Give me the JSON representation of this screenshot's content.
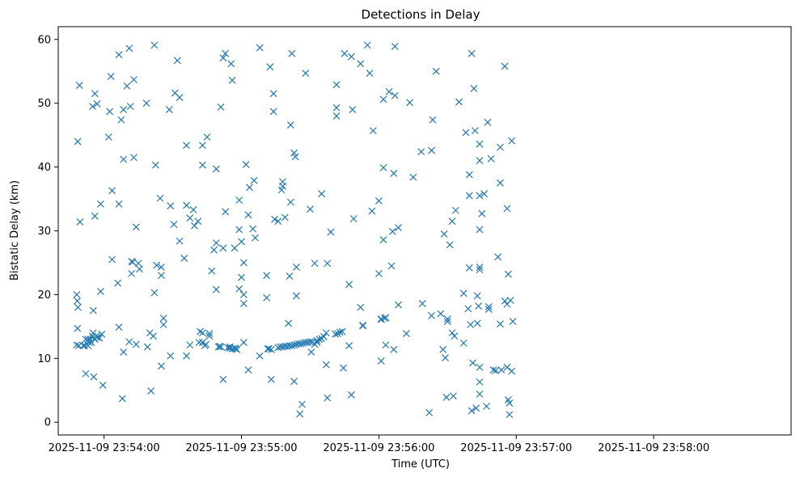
{
  "chart_data": {
    "type": "scatter",
    "title": "Detections in Delay",
    "xlabel": "Time (UTC)",
    "ylabel": "Bistatic Delay (km)",
    "x_unit": "seconds after 2025-11-09 23:53:00 UTC",
    "xlim": [
      40,
      360
    ],
    "ylim": [
      -2,
      62
    ],
    "x_ticks": [
      {
        "value": 60,
        "label": "2025-11-09 23:54:00"
      },
      {
        "value": 120,
        "label": "2025-11-09 23:55:00"
      },
      {
        "value": 180,
        "label": "2025-11-09 23:56:00"
      },
      {
        "value": 240,
        "label": "2025-11-09 23:57:00"
      },
      {
        "value": 300,
        "label": "2025-11-09 23:58:00"
      }
    ],
    "y_ticks": [
      0,
      10,
      20,
      30,
      40,
      50,
      60
    ],
    "grid": false,
    "marker": "x",
    "color": "#1f77b4",
    "points": [
      [
        48,
        12.1
      ],
      [
        48.1,
        20
      ],
      [
        48.3,
        19
      ],
      [
        48.4,
        14.7
      ],
      [
        48.5,
        44
      ],
      [
        48.6,
        18
      ],
      [
        49,
        12
      ],
      [
        49.3,
        52.8
      ],
      [
        49.5,
        31.4
      ],
      [
        51,
        12
      ],
      [
        51.5,
        12
      ],
      [
        52,
        7.6
      ],
      [
        52,
        13
      ],
      [
        53,
        12
      ],
      [
        53,
        13
      ],
      [
        53.5,
        12.5
      ],
      [
        54,
        13
      ],
      [
        54.5,
        12.5
      ],
      [
        55,
        49.5
      ],
      [
        55,
        13.5
      ],
      [
        55.2,
        14
      ],
      [
        55.3,
        17.5
      ],
      [
        55.5,
        7.1
      ],
      [
        56,
        13
      ],
      [
        56,
        51.5
      ],
      [
        56,
        32.3
      ],
      [
        56.5,
        13.5
      ],
      [
        57,
        13.3
      ],
      [
        57,
        49.9
      ],
      [
        58,
        13.2
      ],
      [
        58.5,
        34.2
      ],
      [
        58.5,
        20.5
      ],
      [
        59,
        13.8
      ],
      [
        59.5,
        5.8
      ],
      [
        62,
        44.7
      ],
      [
        62.5,
        48.7
      ],
      [
        63,
        54.2
      ],
      [
        63.5,
        36.3
      ],
      [
        63.5,
        25.5
      ],
      [
        66,
        21.8
      ],
      [
        66.5,
        14.9
      ],
      [
        66.5,
        57.6
      ],
      [
        66.5,
        34.2
      ],
      [
        67.5,
        47.4
      ],
      [
        68,
        3.7
      ],
      [
        68.5,
        49
      ],
      [
        68.5,
        41.2
      ],
      [
        68.5,
        11
      ],
      [
        70,
        52.7
      ],
      [
        71,
        58.6
      ],
      [
        71,
        12.6
      ],
      [
        71.5,
        49.5
      ],
      [
        72,
        25.2
      ],
      [
        72,
        23.3
      ],
      [
        72.5,
        25.1
      ],
      [
        73,
        53.7
      ],
      [
        73,
        41.5
      ],
      [
        74,
        30.6
      ],
      [
        74,
        12.2
      ],
      [
        75,
        24.9
      ],
      [
        75.5,
        24
      ],
      [
        78.5,
        50
      ],
      [
        79,
        11.8
      ],
      [
        80,
        14
      ],
      [
        80.5,
        4.9
      ],
      [
        81.5,
        13.5
      ],
      [
        82,
        20.3
      ],
      [
        82,
        59.1
      ],
      [
        82.5,
        40.3
      ],
      [
        83,
        24.6
      ],
      [
        84.5,
        35.1
      ],
      [
        85,
        8.8
      ],
      [
        85,
        24.3
      ],
      [
        85,
        23
      ],
      [
        86,
        16.3
      ],
      [
        86,
        15.3
      ],
      [
        88.5,
        49
      ],
      [
        89,
        10.4
      ],
      [
        89,
        33.9
      ],
      [
        90.5,
        31
      ],
      [
        91,
        51.6
      ],
      [
        92,
        56.7
      ],
      [
        93,
        50.9
      ],
      [
        93,
        28.4
      ],
      [
        95,
        25.7
      ],
      [
        96,
        34
      ],
      [
        96,
        43.4
      ],
      [
        96,
        10.4
      ],
      [
        97.5,
        12.1
      ],
      [
        97.5,
        32
      ],
      [
        99,
        33.3
      ],
      [
        99.5,
        30.8
      ],
      [
        101,
        31.5
      ],
      [
        101.5,
        12.5
      ],
      [
        102,
        14.2
      ],
      [
        103,
        14
      ],
      [
        103,
        12.5
      ],
      [
        103,
        43.4
      ],
      [
        103,
        40.3
      ],
      [
        104,
        12
      ],
      [
        104.5,
        12.2
      ],
      [
        105,
        44.7
      ],
      [
        106,
        13.9
      ],
      [
        106,
        13.5
      ],
      [
        107,
        23.7
      ],
      [
        108,
        27
      ],
      [
        109,
        28.1
      ],
      [
        109,
        39.7
      ],
      [
        109,
        20.8
      ],
      [
        110,
        11.8
      ],
      [
        110.5,
        11.9
      ],
      [
        111,
        11.8
      ],
      [
        111,
        49.4
      ],
      [
        112,
        6.7
      ],
      [
        112,
        57.1
      ],
      [
        112,
        27.3
      ],
      [
        113,
        57.8
      ],
      [
        113,
        33
      ],
      [
        114,
        11.7
      ],
      [
        115,
        11.6
      ],
      [
        115,
        11.8
      ],
      [
        115.5,
        56.2
      ],
      [
        116,
        11.5
      ],
      [
        116,
        53.6
      ],
      [
        117,
        11.6
      ],
      [
        117,
        27.3
      ],
      [
        117.5,
        11.5
      ],
      [
        118,
        11.4
      ],
      [
        119,
        34.8
      ],
      [
        119,
        30.2
      ],
      [
        119,
        20.9
      ],
      [
        120,
        28.3
      ],
      [
        120,
        22.7
      ],
      [
        121,
        12.5
      ],
      [
        121,
        25
      ],
      [
        121,
        20
      ],
      [
        121,
        18.6
      ],
      [
        122,
        40.4
      ],
      [
        123,
        32.5
      ],
      [
        123,
        8.2
      ],
      [
        123.5,
        36.8
      ],
      [
        125,
        30.3
      ],
      [
        125.5,
        37.9
      ],
      [
        126,
        28.9
      ],
      [
        128,
        58.7
      ],
      [
        128,
        10.4
      ],
      [
        131,
        23
      ],
      [
        131,
        19.5
      ],
      [
        131.5,
        11.5
      ],
      [
        132,
        11.5
      ],
      [
        132.5,
        55.7
      ],
      [
        133,
        11.4
      ],
      [
        133,
        6.7
      ],
      [
        134,
        51.5
      ],
      [
        134,
        48.7
      ],
      [
        134.5,
        31.8
      ],
      [
        136,
        11.7
      ],
      [
        136,
        31.5
      ],
      [
        137,
        11.8
      ],
      [
        137.5,
        36.4
      ],
      [
        138,
        11.8
      ],
      [
        138,
        37.7
      ],
      [
        138,
        37
      ],
      [
        139,
        11.9
      ],
      [
        139,
        32.1
      ],
      [
        140,
        11.9
      ],
      [
        140.5,
        15.5
      ],
      [
        141,
        12
      ],
      [
        141,
        22.9
      ],
      [
        141.5,
        34.5
      ],
      [
        141.5,
        46.6
      ],
      [
        142,
        12
      ],
      [
        142,
        57.8
      ],
      [
        143,
        12.1
      ],
      [
        143,
        42.2
      ],
      [
        143,
        6.4
      ],
      [
        143.5,
        41.6
      ],
      [
        144,
        12.2
      ],
      [
        144,
        24.3
      ],
      [
        144,
        19.8
      ],
      [
        145,
        12.3
      ],
      [
        145.5,
        1.3
      ],
      [
        146,
        12.3
      ],
      [
        146.5,
        2.8
      ],
      [
        147,
        12.4
      ],
      [
        148,
        12.5
      ],
      [
        148,
        54.7
      ],
      [
        149,
        12.5
      ],
      [
        150,
        12.6
      ],
      [
        150,
        33.4
      ],
      [
        150.5,
        11
      ],
      [
        151,
        12.6
      ],
      [
        152,
        12.2
      ],
      [
        152,
        24.9
      ],
      [
        153,
        12.5
      ],
      [
        153,
        12.8
      ],
      [
        154,
        13
      ],
      [
        155,
        13.1
      ],
      [
        155,
        35.8
      ],
      [
        156,
        13.4
      ],
      [
        157,
        14
      ],
      [
        157,
        9
      ],
      [
        157.5,
        3.8
      ],
      [
        157.5,
        24.9
      ],
      [
        159,
        29.8
      ],
      [
        161,
        13.8
      ],
      [
        161.5,
        52.9
      ],
      [
        161.5,
        49.3
      ],
      [
        161.5,
        48
      ],
      [
        162,
        13.9
      ],
      [
        163,
        14.1
      ],
      [
        164,
        14.2
      ],
      [
        164.5,
        8.5
      ],
      [
        165,
        57.8
      ],
      [
        167,
        21.6
      ],
      [
        167,
        12
      ],
      [
        168,
        57.3
      ],
      [
        168,
        4.3
      ],
      [
        168.5,
        49
      ],
      [
        169,
        31.9
      ],
      [
        172,
        18
      ],
      [
        172,
        56.2
      ],
      [
        173,
        15.2
      ],
      [
        173,
        15.1
      ],
      [
        175,
        59.1
      ],
      [
        176,
        54.7
      ],
      [
        177,
        33.1
      ],
      [
        177.5,
        45.7
      ],
      [
        180,
        23.3
      ],
      [
        180,
        34.7
      ],
      [
        181,
        9.6
      ],
      [
        181,
        16.2
      ],
      [
        181,
        16.1
      ],
      [
        182,
        50.6
      ],
      [
        182,
        28.6
      ],
      [
        182,
        39.9
      ],
      [
        182.5,
        16.3
      ],
      [
        183,
        12.1
      ],
      [
        183,
        16.4
      ],
      [
        184.5,
        51.8
      ],
      [
        185.5,
        24.5
      ],
      [
        186,
        29.9
      ],
      [
        186.5,
        39
      ],
      [
        186.5,
        11.4
      ],
      [
        187,
        51.2
      ],
      [
        187,
        58.9
      ],
      [
        188.5,
        30.5
      ],
      [
        188.5,
        18.4
      ],
      [
        192,
        13.9
      ],
      [
        193.5,
        50.1
      ],
      [
        195,
        38.4
      ],
      [
        198.5,
        42.4
      ],
      [
        199,
        18.6
      ],
      [
        202,
        1.5
      ],
      [
        203,
        42.6
      ],
      [
        203,
        16.7
      ],
      [
        203.5,
        47.4
      ],
      [
        205,
        55
      ],
      [
        207,
        17
      ],
      [
        208,
        11.4
      ],
      [
        208.5,
        29.5
      ],
      [
        209,
        10.1
      ],
      [
        209.5,
        3.9
      ],
      [
        210,
        16.2
      ],
      [
        210,
        15.8
      ],
      [
        211,
        27.8
      ],
      [
        212,
        31.5
      ],
      [
        212,
        14
      ],
      [
        212.5,
        4.1
      ],
      [
        213,
        13.5
      ],
      [
        213.5,
        33.2
      ],
      [
        215,
        50.2
      ],
      [
        217,
        12.4
      ],
      [
        217,
        20.2
      ],
      [
        218,
        45.4
      ],
      [
        219,
        17.8
      ],
      [
        219.5,
        24.2
      ],
      [
        219.5,
        38.8
      ],
      [
        219.5,
        35.5
      ],
      [
        220,
        15.3
      ],
      [
        220.5,
        1.8
      ],
      [
        220.5,
        57.8
      ],
      [
        221,
        9.3
      ],
      [
        221.5,
        52.3
      ],
      [
        222,
        45.7
      ],
      [
        222.5,
        2.2
      ],
      [
        223,
        19.8
      ],
      [
        223,
        15.5
      ],
      [
        223.5,
        18.2
      ],
      [
        224,
        30.2
      ],
      [
        224,
        24.3
      ],
      [
        224,
        23.9
      ],
      [
        224,
        41
      ],
      [
        224,
        43.6
      ],
      [
        224,
        35.5
      ],
      [
        224,
        8.6
      ],
      [
        224,
        6.3
      ],
      [
        224,
        4.4
      ],
      [
        225,
        32.7
      ],
      [
        226,
        35.8
      ],
      [
        227,
        2.5
      ],
      [
        227.5,
        47
      ],
      [
        228,
        18.1
      ],
      [
        228,
        17.7
      ],
      [
        229,
        41.3
      ],
      [
        230,
        8.2
      ],
      [
        231,
        8.1
      ],
      [
        232,
        25.9
      ],
      [
        233,
        43.1
      ],
      [
        233,
        37.5
      ],
      [
        233,
        15.4
      ],
      [
        233.5,
        8.2
      ],
      [
        235,
        55.8
      ],
      [
        235,
        19
      ],
      [
        236,
        33.5
      ],
      [
        236,
        18.5
      ],
      [
        236,
        8.6
      ],
      [
        236.5,
        23.2
      ],
      [
        236.5,
        3.5
      ],
      [
        237,
        3
      ],
      [
        237,
        1.2
      ],
      [
        237.5,
        19.1
      ],
      [
        238,
        44.1
      ],
      [
        238,
        8
      ],
      [
        238.5,
        15.8
      ]
    ]
  }
}
